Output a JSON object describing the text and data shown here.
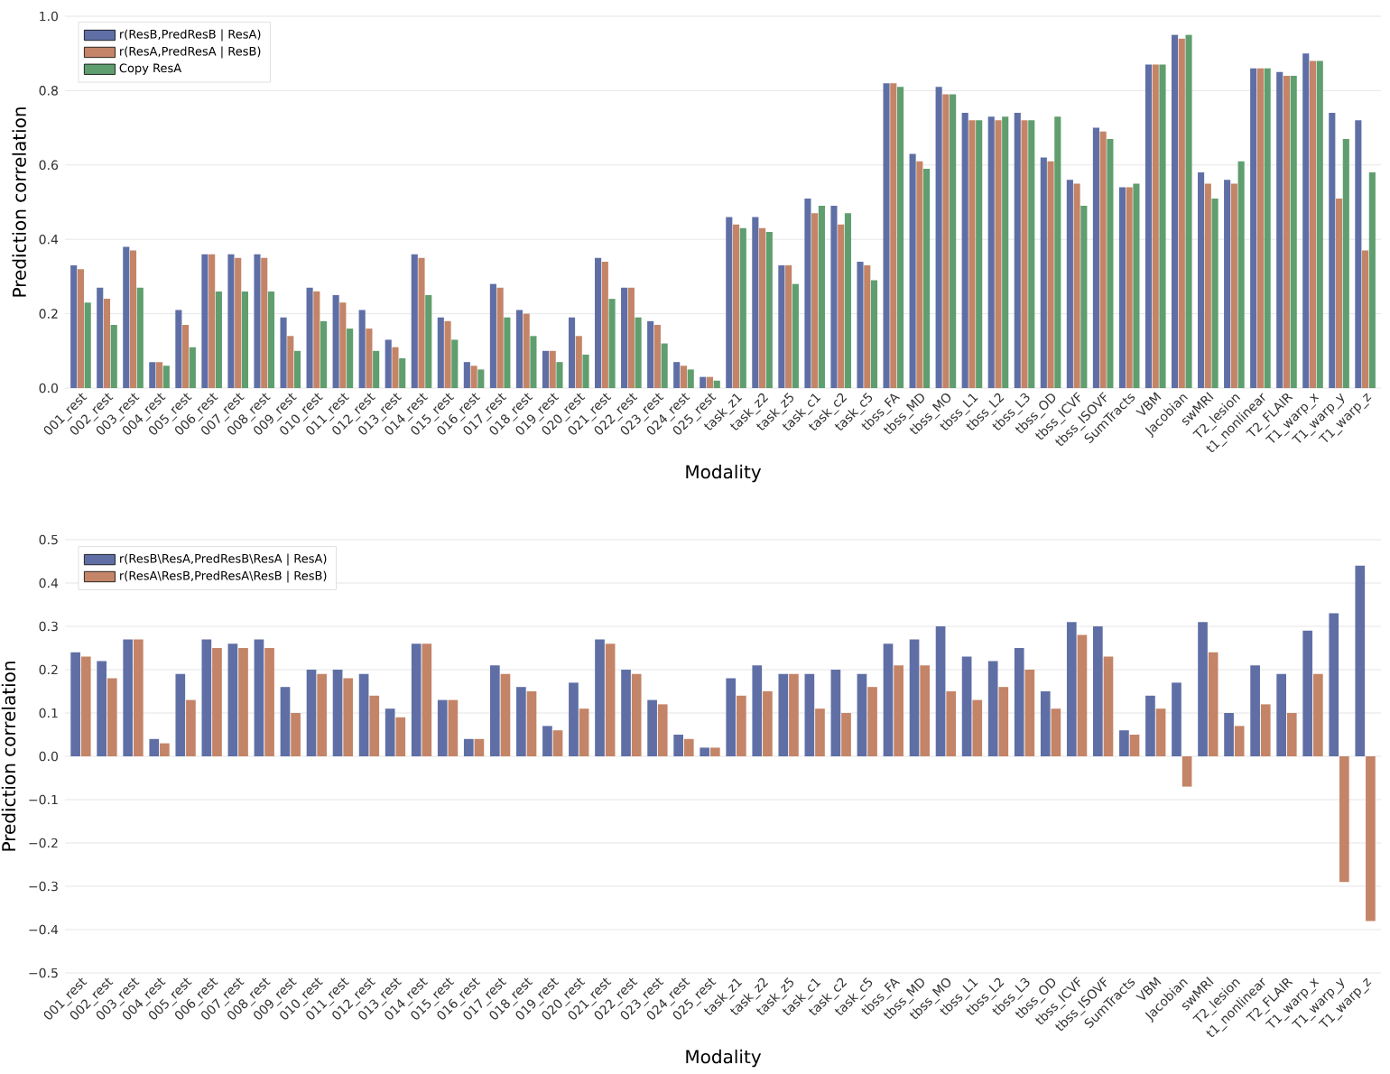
{
  "chart_data": [
    {
      "type": "bar",
      "xlabel": "Modality",
      "ylabel": "Prediction correlation",
      "grid": "y",
      "legend": "top left",
      "categories": [
        "001_rest",
        "002_rest",
        "003_rest",
        "004_rest",
        "005_rest",
        "006_rest",
        "007_rest",
        "008_rest",
        "009_rest",
        "010_rest",
        "011_rest",
        "012_rest",
        "013_rest",
        "014_rest",
        "015_rest",
        "016_rest",
        "017_rest",
        "018_rest",
        "019_rest",
        "020_rest",
        "021_rest",
        "022_rest",
        "023_rest",
        "024_rest",
        "025_rest",
        "task_z1",
        "task_z2",
        "task_z5",
        "task_c1",
        "task_c2",
        "task_c5",
        "tbss_FA",
        "tbss_MD",
        "tbss_MO",
        "tbss_L1",
        "tbss_L2",
        "tbss_L3",
        "tbss_OD",
        "tbss_ICVF",
        "tbss_ISOVF",
        "SumTracts",
        "VBM",
        "Jacobian",
        "swMRI",
        "T2_lesion",
        "t1_nonlinear",
        "T2_FLAIR",
        "T1_warp_x",
        "T1_warp_y",
        "T1_warp_z"
      ],
      "ylim": [
        0,
        1
      ],
      "yticks": [
        {
          "value": 0,
          "label": "0.0"
        },
        {
          "value": 0.2,
          "label": "0.2"
        },
        {
          "value": 0.4,
          "label": "0.4"
        },
        {
          "value": 0.6,
          "label": "0.6"
        },
        {
          "value": 0.8,
          "label": "0.8"
        },
        {
          "value": 1,
          "label": "1.0"
        }
      ],
      "series": [
        {
          "name": "r(ResB,PredResB | ResA)",
          "color": "#5f6fa6",
          "values": [
            0.33,
            0.27,
            0.38,
            0.07,
            0.21,
            0.36,
            0.36,
            0.36,
            0.19,
            0.27,
            0.25,
            0.21,
            0.13,
            0.36,
            0.19,
            0.07,
            0.28,
            0.21,
            0.1,
            0.19,
            0.35,
            0.27,
            0.18,
            0.07,
            0.03,
            0.46,
            0.46,
            0.33,
            0.51,
            0.49,
            0.34,
            0.82,
            0.63,
            0.81,
            0.74,
            0.73,
            0.74,
            0.62,
            0.56,
            0.7,
            0.54,
            0.87,
            0.95,
            0.58,
            0.56,
            0.86,
            0.85,
            0.9,
            0.74,
            0.72
          ]
        },
        {
          "name": "r(ResA,PredResA | ResB)",
          "color": "#c48467",
          "values": [
            0.32,
            0.24,
            0.37,
            0.07,
            0.17,
            0.36,
            0.35,
            0.35,
            0.14,
            0.26,
            0.23,
            0.16,
            0.11,
            0.35,
            0.18,
            0.06,
            0.27,
            0.2,
            0.1,
            0.14,
            0.34,
            0.27,
            0.17,
            0.06,
            0.03,
            0.44,
            0.43,
            0.33,
            0.47,
            0.44,
            0.33,
            0.82,
            0.61,
            0.79,
            0.72,
            0.72,
            0.72,
            0.61,
            0.55,
            0.69,
            0.54,
            0.87,
            0.94,
            0.55,
            0.55,
            0.86,
            0.84,
            0.88,
            0.51,
            0.37
          ]
        },
        {
          "name": "Copy ResA",
          "color": "#5f9e6e",
          "values": [
            0.23,
            0.17,
            0.27,
            0.06,
            0.11,
            0.26,
            0.26,
            0.26,
            0.1,
            0.18,
            0.16,
            0.1,
            0.08,
            0.25,
            0.13,
            0.05,
            0.19,
            0.14,
            0.07,
            0.09,
            0.24,
            0.19,
            0.12,
            0.05,
            0.02,
            0.43,
            0.42,
            0.28,
            0.49,
            0.47,
            0.29,
            0.81,
            0.59,
            0.79,
            0.72,
            0.73,
            0.72,
            0.73,
            0.49,
            0.67,
            0.55,
            0.87,
            0.95,
            0.51,
            0.61,
            0.86,
            0.84,
            0.88,
            0.67,
            0.58
          ]
        }
      ]
    },
    {
      "type": "bar",
      "xlabel": "Modality",
      "ylabel": "Prediction correlation",
      "grid": "y",
      "legend": "top left",
      "categories": [
        "001_rest",
        "002_rest",
        "003_rest",
        "004_rest",
        "005_rest",
        "006_rest",
        "007_rest",
        "008_rest",
        "009_rest",
        "010_rest",
        "011_rest",
        "012_rest",
        "013_rest",
        "014_rest",
        "015_rest",
        "016_rest",
        "017_rest",
        "018_rest",
        "019_rest",
        "020_rest",
        "021_rest",
        "022_rest",
        "023_rest",
        "024_rest",
        "025_rest",
        "task_z1",
        "task_z2",
        "task_z5",
        "task_c1",
        "task_c2",
        "task_c5",
        "tbss_FA",
        "tbss_MD",
        "tbss_MO",
        "tbss_L1",
        "tbss_L2",
        "tbss_L3",
        "tbss_OD",
        "tbss_ICVF",
        "tbss_ISOVF",
        "SumTracts",
        "VBM",
        "Jacobian",
        "swMRI",
        "T2_lesion",
        "t1_nonlinear",
        "T2_FLAIR",
        "T1_warp_x",
        "T1_warp_y",
        "T1_warp_z"
      ],
      "ylim": [
        -0.5,
        0.5
      ],
      "yticks": [
        {
          "value": -0.5,
          "label": "−0.5"
        },
        {
          "value": -0.4,
          "label": "−0.4"
        },
        {
          "value": -0.3,
          "label": "−0.3"
        },
        {
          "value": -0.2,
          "label": "−0.2"
        },
        {
          "value": -0.1,
          "label": "−0.1"
        },
        {
          "value": 0,
          "label": "0.0"
        },
        {
          "value": 0.1,
          "label": "0.1"
        },
        {
          "value": 0.2,
          "label": "0.2"
        },
        {
          "value": 0.3,
          "label": "0.3"
        },
        {
          "value": 0.4,
          "label": "0.4"
        },
        {
          "value": 0.5,
          "label": "0.5"
        }
      ],
      "series": [
        {
          "name": "r(ResB\\ResA,PredResB\\ResA | ResA)",
          "color": "#5f6fa6",
          "values": [
            0.24,
            0.22,
            0.27,
            0.04,
            0.19,
            0.27,
            0.26,
            0.27,
            0.16,
            0.2,
            0.2,
            0.19,
            0.11,
            0.26,
            0.13,
            0.04,
            0.21,
            0.16,
            0.07,
            0.17,
            0.27,
            0.2,
            0.13,
            0.05,
            0.02,
            0.18,
            0.21,
            0.19,
            0.19,
            0.2,
            0.19,
            0.26,
            0.27,
            0.3,
            0.23,
            0.22,
            0.25,
            0.15,
            0.31,
            0.3,
            0.06,
            0.14,
            0.17,
            0.31,
            0.1,
            0.21,
            0.19,
            0.29,
            0.33,
            0.44
          ]
        },
        {
          "name": "r(ResA\\ResB,PredResA\\ResB | ResB)",
          "color": "#c48467",
          "values": [
            0.23,
            0.18,
            0.27,
            0.03,
            0.13,
            0.25,
            0.25,
            0.25,
            0.1,
            0.19,
            0.18,
            0.14,
            0.09,
            0.26,
            0.13,
            0.04,
            0.19,
            0.15,
            0.06,
            0.11,
            0.26,
            0.19,
            0.12,
            0.04,
            0.02,
            0.14,
            0.15,
            0.19,
            0.11,
            0.1,
            0.16,
            0.21,
            0.21,
            0.15,
            0.13,
            0.16,
            0.2,
            0.11,
            0.28,
            0.23,
            0.05,
            0.11,
            -0.07,
            0.24,
            0.07,
            0.12,
            0.1,
            0.19,
            -0.29,
            -0.38
          ]
        }
      ]
    }
  ]
}
